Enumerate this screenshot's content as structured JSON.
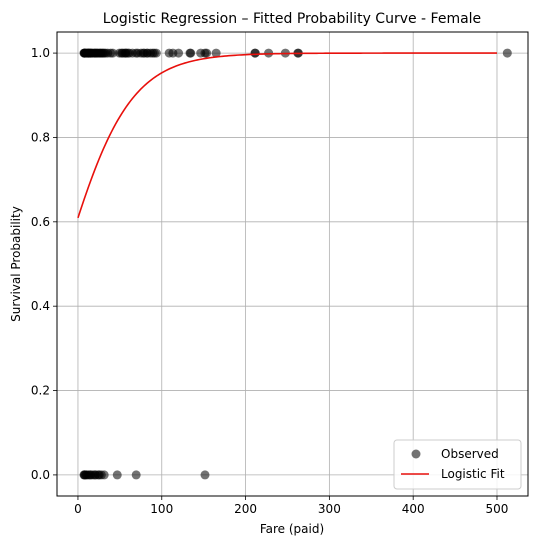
{
  "chart_data": {
    "type": "scatter",
    "title": "Logistic Regression – Fitted Probability Curve - Female",
    "xlabel": "Fare (paid)",
    "ylabel": "Survival Probability",
    "xlim": [
      -25,
      537
    ],
    "ylim": [
      -0.05,
      1.05
    ],
    "xticks": [
      0,
      100,
      200,
      300,
      400,
      500
    ],
    "yticks": [
      0.0,
      0.2,
      0.4,
      0.6,
      0.8,
      1.0
    ],
    "xtick_labels": [
      "0",
      "100",
      "200",
      "300",
      "400",
      "500"
    ],
    "ytick_labels": [
      "0.0",
      "0.2",
      "0.4",
      "0.6",
      "0.8",
      "1.0"
    ],
    "grid": true,
    "legend_position": "bottom-right",
    "series": [
      {
        "name": "Observed",
        "kind": "scatter",
        "color": "#000000",
        "opacity": 0.55,
        "points": [
          [
            7.2,
            1
          ],
          [
            7.7,
            1
          ],
          [
            7.9,
            1
          ],
          [
            8.0,
            1
          ],
          [
            8.5,
            1
          ],
          [
            9.5,
            1
          ],
          [
            10.5,
            1
          ],
          [
            11.1,
            1
          ],
          [
            12.0,
            1
          ],
          [
            12.5,
            1
          ],
          [
            13.0,
            1
          ],
          [
            13.4,
            1
          ],
          [
            14.4,
            1
          ],
          [
            15.2,
            1
          ],
          [
            15.5,
            1
          ],
          [
            16.7,
            1
          ],
          [
            17.8,
            1
          ],
          [
            19.5,
            1
          ],
          [
            20.2,
            1
          ],
          [
            21.0,
            1
          ],
          [
            22.4,
            1
          ],
          [
            23.0,
            1
          ],
          [
            24.2,
            1
          ],
          [
            26.0,
            1
          ],
          [
            26.5,
            1
          ],
          [
            27.7,
            1
          ],
          [
            29.1,
            1
          ],
          [
            30.0,
            1
          ],
          [
            31.4,
            1
          ],
          [
            33.0,
            1
          ],
          [
            35.5,
            1
          ],
          [
            39.0,
            1
          ],
          [
            41.6,
            1
          ],
          [
            49.5,
            1
          ],
          [
            51.9,
            1
          ],
          [
            53.1,
            1
          ],
          [
            55.0,
            1
          ],
          [
            56.9,
            1
          ],
          [
            57.0,
            1
          ],
          [
            59.4,
            1
          ],
          [
            61.2,
            1
          ],
          [
            65.0,
            1
          ],
          [
            69.3,
            1
          ],
          [
            71.3,
            1
          ],
          [
            75.3,
            1
          ],
          [
            77.9,
            1
          ],
          [
            79.2,
            1
          ],
          [
            82.2,
            1
          ],
          [
            83.2,
            1
          ],
          [
            86.5,
            1
          ],
          [
            89.1,
            1
          ],
          [
            91.1,
            1
          ],
          [
            93.5,
            1
          ],
          [
            108.9,
            1
          ],
          [
            113.3,
            1
          ],
          [
            120.0,
            1
          ],
          [
            133.7,
            1
          ],
          [
            134.5,
            1
          ],
          [
            146.5,
            1
          ],
          [
            151.6,
            1
          ],
          [
            153.5,
            1
          ],
          [
            164.9,
            1
          ],
          [
            211.3,
            1
          ],
          [
            211.5,
            1
          ],
          [
            227.5,
            1
          ],
          [
            247.5,
            1
          ],
          [
            262.4,
            1
          ],
          [
            263.0,
            1
          ],
          [
            512.3,
            1
          ],
          [
            7.2,
            0
          ],
          [
            7.8,
            0
          ],
          [
            8.1,
            0
          ],
          [
            9.5,
            0
          ],
          [
            10.5,
            0
          ],
          [
            12.5,
            0
          ],
          [
            14.5,
            0
          ],
          [
            15.2,
            0
          ],
          [
            17.8,
            0
          ],
          [
            20.2,
            0
          ],
          [
            21.1,
            0
          ],
          [
            24.2,
            0
          ],
          [
            25.5,
            0
          ],
          [
            27.9,
            0
          ],
          [
            31.3,
            0
          ],
          [
            46.9,
            0
          ],
          [
            69.5,
            0
          ],
          [
            151.6,
            0
          ]
        ]
      },
      {
        "name": "Logistic Fit",
        "kind": "line",
        "color": "#e8100c",
        "intercept": 0.444,
        "slope": 0.0257,
        "x_range": [
          0,
          500
        ]
      }
    ]
  }
}
